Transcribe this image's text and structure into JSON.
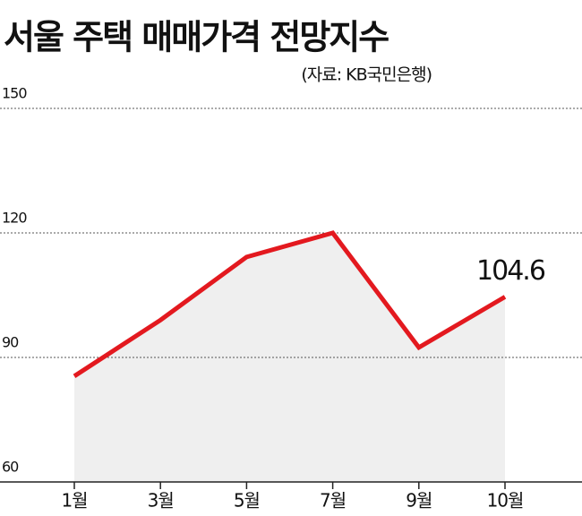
{
  "chart_data": {
    "type": "line",
    "title": "서울 주택 매매가격 전망지수",
    "subtitle": "(자료: KB국민은행)",
    "categories": [
      "1월",
      "3월",
      "5월",
      "7월",
      "9월",
      "10월"
    ],
    "values": [
      85.5,
      99,
      114.2,
      120,
      92.4,
      104.6
    ],
    "color": "#e3191f",
    "area_color": "#efefef",
    "ylim": [
      60,
      150
    ],
    "yticks": [
      60,
      90,
      120,
      150
    ],
    "grid": true,
    "labeled_point": 5
  }
}
